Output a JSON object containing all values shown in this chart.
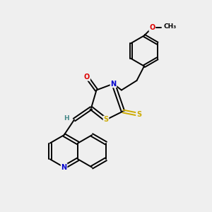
{
  "background_color": "#efefef",
  "bond_color": "#000000",
  "atom_colors": {
    "N": "#0000cc",
    "O": "#dd0000",
    "S": "#ccaa00",
    "H": "#448888",
    "C": "#000000"
  },
  "figsize": [
    3.0,
    3.0
  ],
  "dpi": 100
}
